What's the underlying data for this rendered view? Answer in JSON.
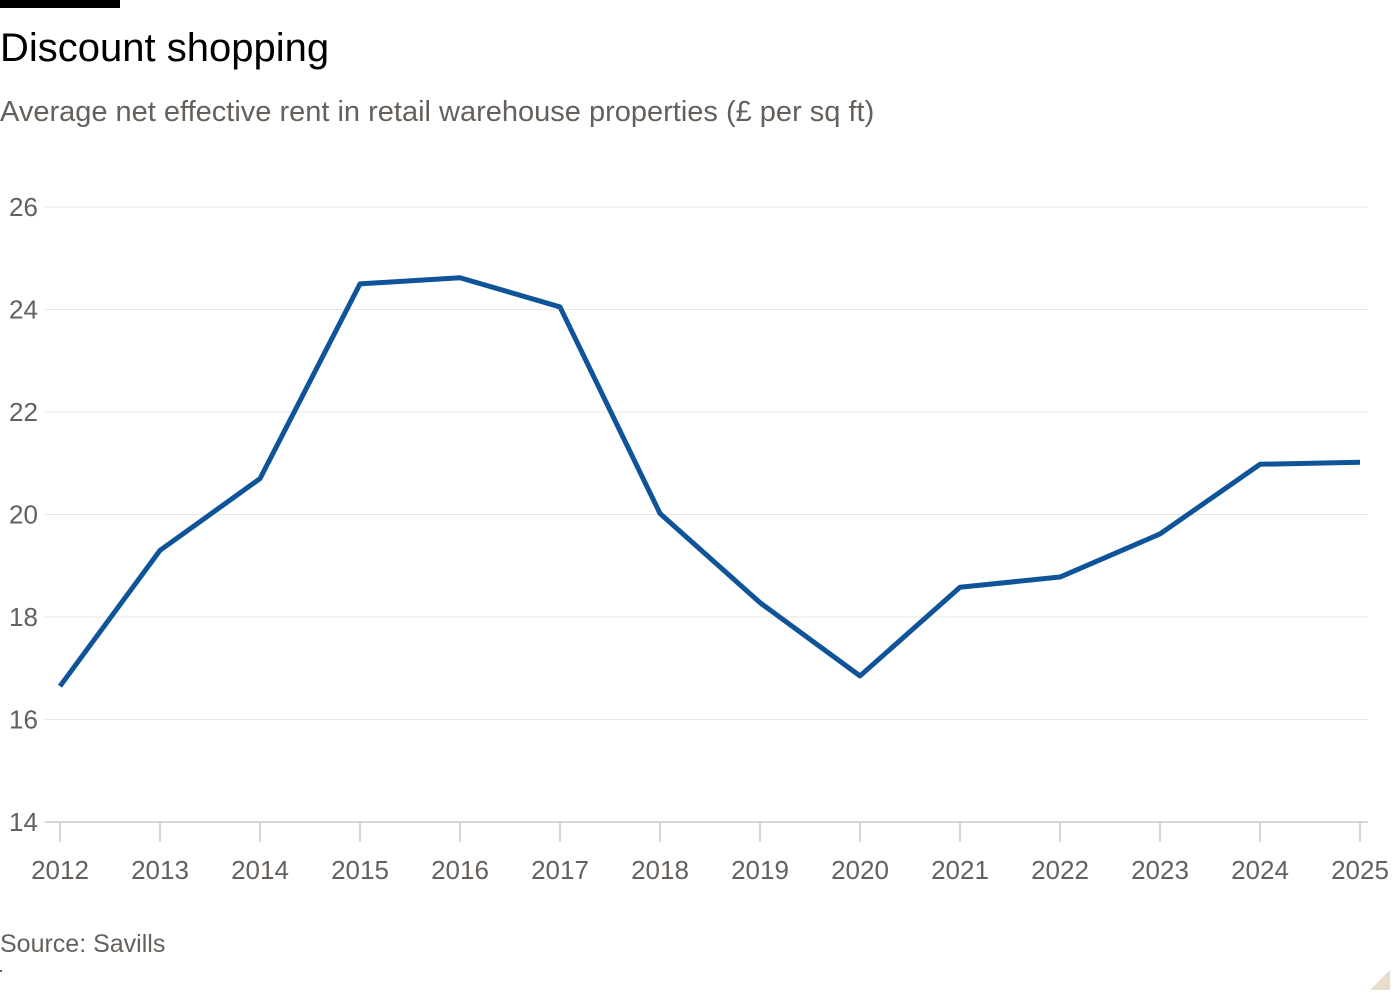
{
  "header": {
    "title": "Discount shopping",
    "subtitle": "Average net effective rent in retail warehouse properties (£ per sq ft)"
  },
  "footer": {
    "source": "Source: Savills"
  },
  "colors": {
    "line": "#0f5499",
    "grid": "#ebe6e1",
    "axis": "#cfc8c2",
    "text": "#66605c"
  },
  "chart_data": {
    "type": "line",
    "title": "Discount shopping",
    "subtitle": "Average net effective rent in retail warehouse properties (£ per sq ft)",
    "xlabel": "",
    "ylabel": "",
    "x": [
      2012,
      2013,
      2014,
      2015,
      2016,
      2017,
      2018,
      2019,
      2020,
      2021,
      2022,
      2023,
      2024,
      2025
    ],
    "series": [
      {
        "values": [
          16.65,
          19.3,
          20.7,
          24.5,
          24.62,
          24.05,
          20.02,
          18.28,
          16.85,
          18.58,
          18.78,
          19.62,
          20.98,
          21.02
        ]
      }
    ],
    "xlim": [
      2012,
      2025
    ],
    "ylim": [
      14,
      26
    ],
    "yticks": [
      14,
      16,
      18,
      20,
      22,
      24,
      26
    ],
    "xticks": [
      2012,
      2013,
      2014,
      2015,
      2016,
      2017,
      2018,
      2019,
      2020,
      2021,
      2022,
      2023,
      2024,
      2025
    ],
    "grid": true,
    "legend": "none"
  }
}
